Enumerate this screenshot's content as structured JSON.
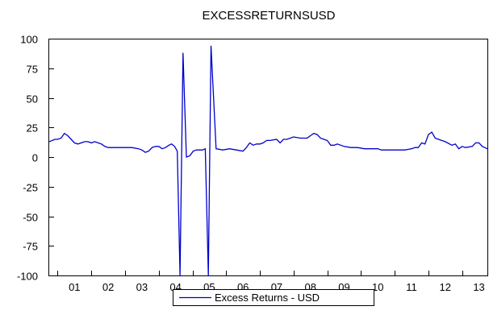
{
  "chart_data": {
    "type": "line",
    "title": "EXCESSRETURNSUSD",
    "xlabel": "",
    "ylabel": "",
    "ylim": [
      -100,
      100
    ],
    "yticks": [
      100,
      75,
      50,
      25,
      0,
      -25,
      -50,
      -75,
      -100
    ],
    "x_tick_labels": [
      "01",
      "02",
      "03",
      "04",
      "05",
      "06",
      "07",
      "08",
      "09",
      "10",
      "11",
      "12",
      "13"
    ],
    "x_range_years": [
      2000.75,
      2013.75
    ],
    "grid": false,
    "legend_position": "bottom-center",
    "series": [
      {
        "name": "Excess Returns - USD",
        "color": "#0000cc",
        "x": [
          2000.75,
          2000.92,
          2001.0,
          2001.1,
          2001.2,
          2001.3,
          2001.4,
          2001.5,
          2001.6,
          2001.7,
          2001.8,
          2001.9,
          2002.0,
          2002.1,
          2002.2,
          2002.3,
          2002.4,
          2002.5,
          2002.6,
          2002.8,
          2003.0,
          2003.2,
          2003.4,
          2003.5,
          2003.6,
          2003.7,
          2003.8,
          2003.9,
          2004.0,
          2004.1,
          2004.2,
          2004.3,
          2004.38,
          2004.47,
          2004.55,
          2004.63,
          2004.72,
          2004.82,
          2004.92,
          2005.02,
          2005.12,
          2005.22,
          2005.3,
          2005.38,
          2005.47,
          2005.55,
          2005.7,
          2005.9,
          2006.1,
          2006.3,
          2006.5,
          2006.6,
          2006.7,
          2006.8,
          2006.9,
          2007.0,
          2007.1,
          2007.2,
          2007.3,
          2007.5,
          2007.6,
          2007.7,
          2007.8,
          2008.0,
          2008.2,
          2008.4,
          2008.5,
          2008.6,
          2008.7,
          2008.8,
          2008.9,
          2009.0,
          2009.1,
          2009.2,
          2009.3,
          2009.5,
          2009.7,
          2009.9,
          2010.1,
          2010.3,
          2010.5,
          2010.6,
          2010.7,
          2010.9,
          2011.1,
          2011.3,
          2011.5,
          2011.6,
          2011.7,
          2011.8,
          2011.9,
          2012.0,
          2012.1,
          2012.2,
          2012.3,
          2012.5,
          2012.7,
          2012.8,
          2012.9,
          2013.0,
          2013.1,
          2013.3,
          2013.4,
          2013.5,
          2013.6,
          2013.75
        ],
        "values": [
          13,
          15,
          15,
          16,
          20,
          18,
          15,
          12,
          11,
          12,
          13,
          13,
          12,
          13,
          12,
          11,
          9,
          8,
          8,
          8,
          8,
          8,
          7,
          6,
          4,
          5,
          8,
          9,
          9,
          7,
          8,
          10,
          11,
          9,
          5,
          -100,
          88,
          0,
          1,
          5,
          6,
          6,
          6,
          7,
          -100,
          94,
          7,
          6,
          7,
          6,
          5,
          8,
          12,
          10,
          11,
          11,
          12,
          14,
          14,
          15,
          12,
          15,
          15,
          17,
          16,
          16,
          18,
          20,
          19,
          16,
          15,
          14,
          10,
          10,
          11,
          9,
          8,
          8,
          7,
          7,
          7,
          6,
          6,
          6,
          6,
          6,
          7,
          8,
          8,
          12,
          11,
          19,
          21,
          16,
          15,
          13,
          10,
          11,
          7,
          9,
          8,
          9,
          12,
          12,
          9,
          7
        ]
      }
    ]
  }
}
